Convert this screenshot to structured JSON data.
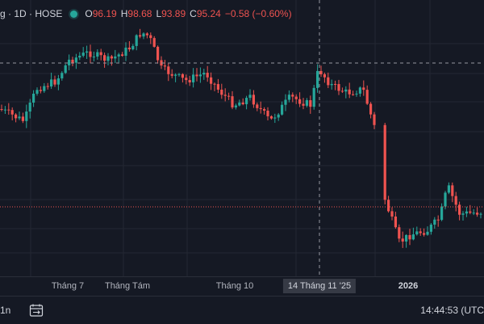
{
  "legend": {
    "symbol": "g · 1D · HOSE",
    "open_label": "O",
    "open_value": "96.19",
    "high_label": "H",
    "high_value": "98.68",
    "low_label": "L",
    "low_value": "93.89",
    "close_label": "C",
    "close_value": "95.24",
    "change": "−0.58 (−0.60%)"
  },
  "time_axis": {
    "ticks": [
      {
        "label": "Tháng 7"
      },
      {
        "label": "Tháng Tám"
      },
      {
        "label": "Tháng 10"
      },
      {
        "label": "2026",
        "bold": true
      }
    ],
    "crosshair_label": "14 Tháng 11 '25"
  },
  "bottom_bar": {
    "range_button": "1n",
    "date_range_icon": "calendar-range-icon",
    "clock": "14:44:53 (UTC"
  },
  "colors": {
    "background": "#151924",
    "up": "#26a69a",
    "down": "#ef5350",
    "grid": "#242733",
    "crosshair": "#9598a1",
    "price_line": "#ef5350"
  },
  "chart_data": {
    "type": "candlestick",
    "interval": "1D",
    "exchange": "HOSE",
    "last_candle": {
      "open": 96.19,
      "high": 98.68,
      "low": 93.89,
      "close": 95.24,
      "change": -0.58,
      "change_pct": -0.6
    },
    "x_axis_labels": [
      "Tháng 7",
      "Tháng Tám",
      "Tháng 10",
      "14 Tháng 11 '25",
      "2026"
    ],
    "close_path_estimate": [
      44,
      43,
      44,
      45,
      51,
      53,
      52,
      56,
      57,
      56,
      59,
      60,
      61,
      59,
      60,
      58,
      55,
      52,
      51,
      52,
      53,
      51,
      50,
      47,
      45,
      47,
      48,
      44,
      47,
      50,
      49,
      52,
      51,
      53,
      52,
      46,
      44,
      41,
      21,
      17,
      22,
      25,
      23,
      24,
      26,
      28,
      28,
      27
    ]
  }
}
